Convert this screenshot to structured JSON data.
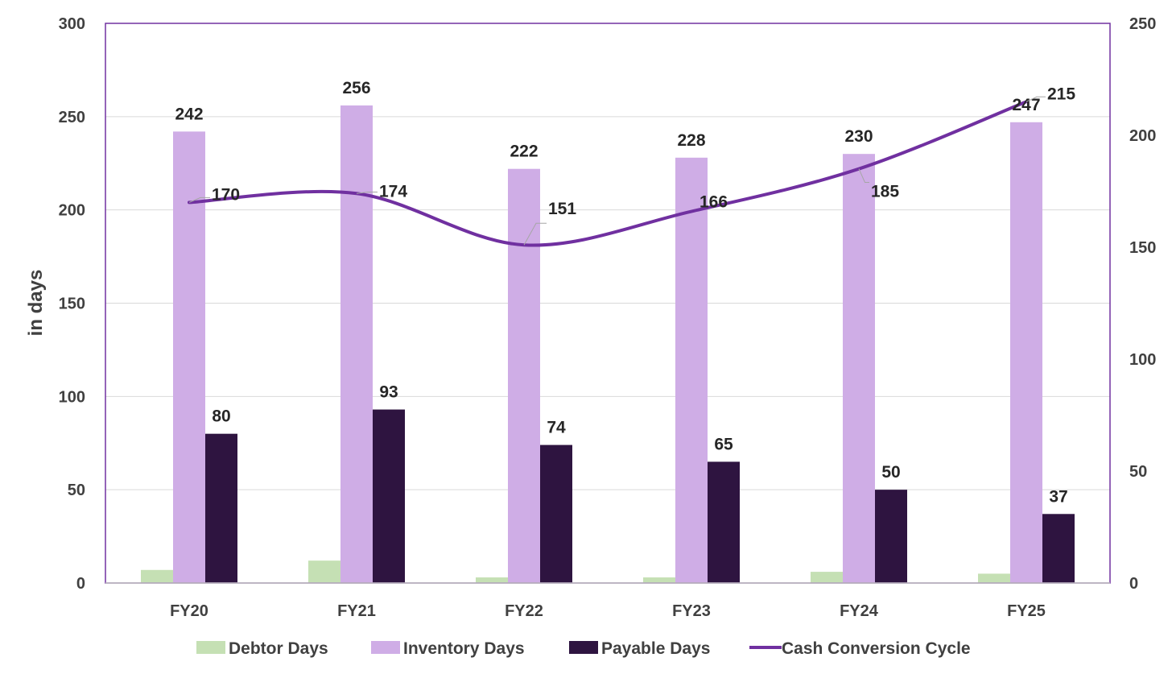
{
  "chart_data": {
    "type": "bar",
    "categories": [
      "FY20",
      "FY21",
      "FY22",
      "FY23",
      "FY24",
      "FY25"
    ],
    "ylabel": "in days",
    "ylim": [
      0,
      300
    ],
    "y_ticks": [
      0,
      50,
      100,
      150,
      200,
      250,
      300
    ],
    "y2lim": [
      0,
      250
    ],
    "y2_ticks": [
      0,
      50,
      100,
      150,
      200,
      250
    ],
    "grid": true,
    "legend_position": "bottom",
    "series": [
      {
        "name": "Debtor Days",
        "type": "bar",
        "axis": "left",
        "color": "#c5e0b4",
        "values": [
          7,
          12,
          3,
          3,
          6,
          5
        ],
        "labels_shown": false
      },
      {
        "name": "Inventory Days",
        "type": "bar",
        "axis": "left",
        "color": "#cfade6",
        "values": [
          242,
          256,
          222,
          228,
          230,
          247
        ],
        "labels_shown": true
      },
      {
        "name": "Payable Days",
        "type": "bar",
        "axis": "left",
        "color": "#2e1440",
        "values": [
          80,
          93,
          74,
          65,
          50,
          37
        ],
        "labels_shown": true
      },
      {
        "name": "Cash Conversion Cycle",
        "type": "line",
        "axis": "right",
        "color": "#7030a0",
        "values": [
          170,
          174,
          151,
          166,
          185,
          215
        ],
        "labels_shown": true
      }
    ]
  }
}
